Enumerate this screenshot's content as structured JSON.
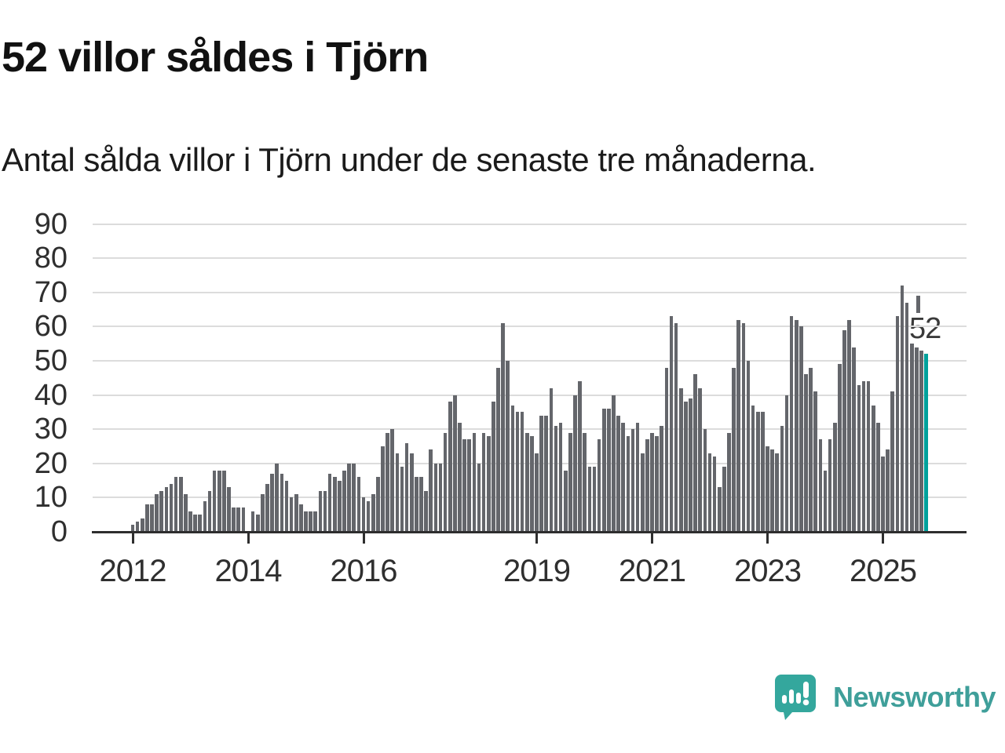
{
  "header": {
    "title": "52 villor såldes i Tjörn",
    "subtitle": "Antal sålda villor i Tjörn under de senaste tre månaderna."
  },
  "chart_data": {
    "type": "bar",
    "title": "52 villor såldes i Tjörn",
    "xlabel": "",
    "ylabel": "",
    "ylim": [
      0,
      90
    ],
    "grid": true,
    "frequency": "monthly",
    "start_period": "2012-01",
    "values": [
      2,
      3,
      4,
      8,
      8,
      11,
      12,
      13,
      14,
      16,
      16,
      11,
      6,
      5,
      5,
      9,
      12,
      18,
      18,
      18,
      13,
      7,
      7,
      7,
      0,
      6,
      5,
      11,
      14,
      17,
      20,
      17,
      15,
      10,
      11,
      8,
      6,
      6,
      6,
      12,
      12,
      17,
      16,
      15,
      18,
      20,
      20,
      16,
      10,
      9,
      11,
      16,
      25,
      29,
      30,
      23,
      19,
      26,
      23,
      16,
      16,
      12,
      24,
      20,
      20,
      29,
      38,
      40,
      32,
      27,
      27,
      29,
      20,
      29,
      28,
      38,
      48,
      61,
      50,
      37,
      35,
      35,
      29,
      28,
      23,
      34,
      34,
      42,
      31,
      32,
      18,
      29,
      40,
      44,
      29,
      19,
      19,
      27,
      36,
      36,
      40,
      34,
      32,
      28,
      30,
      32,
      23,
      27,
      29,
      28,
      31,
      48,
      63,
      61,
      42,
      38,
      39,
      46,
      42,
      30,
      23,
      22,
      13,
      19,
      29,
      48,
      62,
      61,
      50,
      37,
      35,
      35,
      25,
      24,
      23,
      31,
      40,
      63,
      62,
      60,
      46,
      48,
      41,
      27,
      18,
      27,
      32,
      49,
      59,
      62,
      54,
      43,
      44,
      44,
      37,
      32,
      22,
      24,
      41,
      63,
      72,
      67,
      55,
      54,
      53,
      52
    ],
    "highlighted_last_value": 52,
    "annotation_label": "52",
    "marker": {
      "month_index": 164,
      "value_top": 69,
      "value_bottom": 64
    }
  },
  "y_axis": {
    "ticks": [
      "0",
      "10",
      "20",
      "30",
      "40",
      "50",
      "60",
      "70",
      "80",
      "90"
    ]
  },
  "x_axis": {
    "ticks": [
      {
        "label": "2012",
        "month_index": 0
      },
      {
        "label": "2014",
        "month_index": 24
      },
      {
        "label": "2016",
        "month_index": 48
      },
      {
        "label": "2019",
        "month_index": 84
      },
      {
        "label": "2021",
        "month_index": 108
      },
      {
        "label": "2023",
        "month_index": 132
      },
      {
        "label": "2025",
        "month_index": 156
      }
    ]
  },
  "colors": {
    "bar": "#64666b",
    "highlight": "#00a19c",
    "axis": "#2e2e2e",
    "gridline": "#dcdcdc",
    "text": "#1b1b1b",
    "brand_teal": "#3f9f9a",
    "logo_bubble": "#34a79d"
  },
  "logo": {
    "text": "Newsworthy"
  }
}
